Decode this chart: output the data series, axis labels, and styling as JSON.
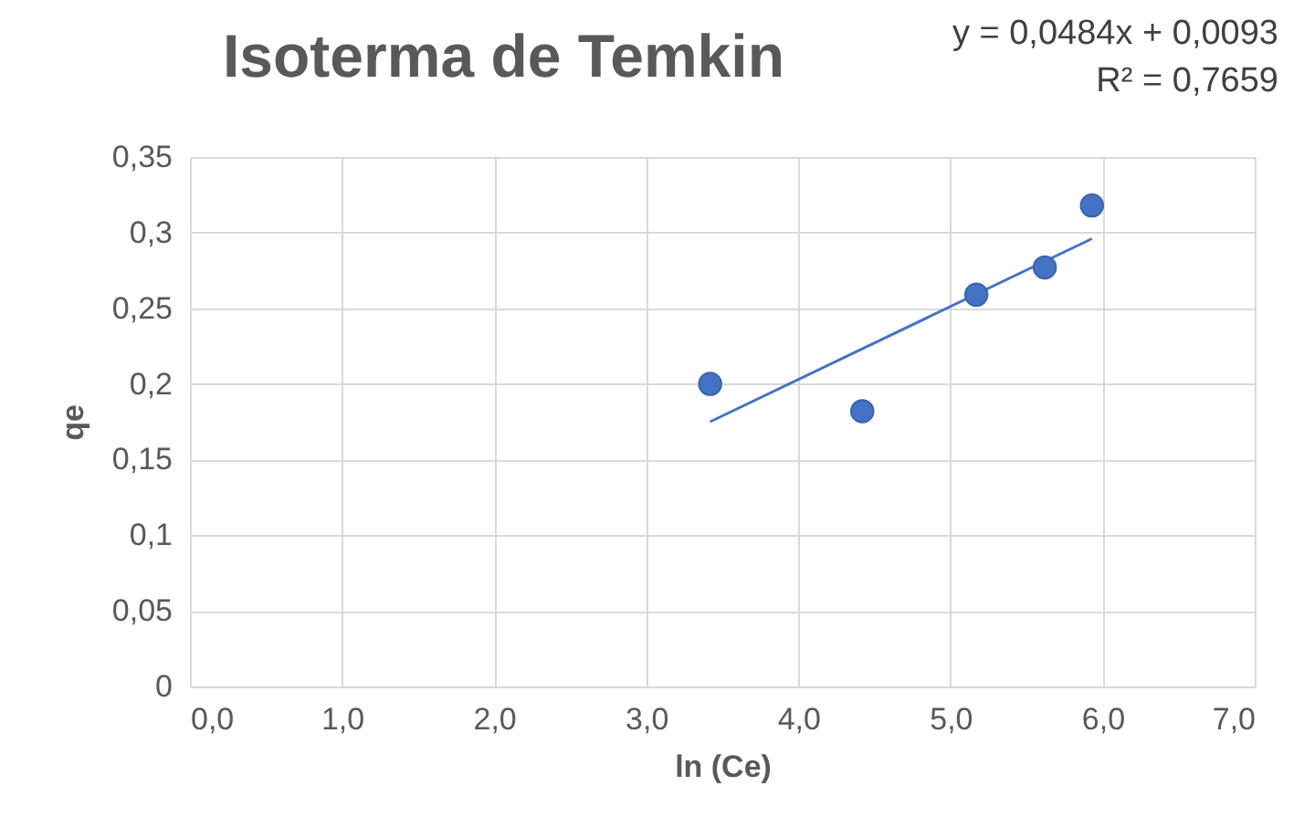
{
  "chart_data": {
    "type": "scatter",
    "title": "Isoterma de Temkin",
    "xlabel": "ln (Ce)",
    "ylabel": "qe",
    "annotations": [
      "y = 0,0484x + 0,0093",
      "R² = 0,7659"
    ],
    "series": [
      {
        "color": "#4472c4",
        "marker": "circle",
        "x": [
          3.42,
          4.42,
          5.17,
          5.62,
          5.93
        ],
        "values": [
          0.2,
          0.182,
          0.259,
          0.277,
          0.318
        ]
      },
      {
        "type": "line",
        "marker": "none",
        "color": "#4472c4",
        "x": [
          3.42,
          5.93
        ],
        "values": [
          0.175,
          0.296
        ]
      }
    ],
    "xlim": [
      0,
      7
    ],
    "xticks": [
      {
        "value": 0,
        "label": "0,0"
      },
      {
        "value": 1,
        "label": "1,0"
      },
      {
        "value": 2,
        "label": "2,0"
      },
      {
        "value": 3,
        "label": "3,0"
      },
      {
        "value": 4,
        "label": "4,0"
      },
      {
        "value": 5,
        "label": "5,0"
      },
      {
        "value": 6,
        "label": "6,0"
      },
      {
        "value": 7,
        "label": "7,0"
      }
    ],
    "ylim": [
      0,
      0.35
    ],
    "yticks": [
      0,
      {
        "value": 0.05,
        "label": "0,05"
      },
      {
        "value": 0.1,
        "label": "0,1"
      },
      {
        "value": 0.15,
        "label": "0,15"
      },
      {
        "value": 0.2,
        "label": "0,2"
      },
      {
        "value": 0.25,
        "label": "0,25"
      },
      {
        "value": 0.3,
        "label": "0,3"
      },
      {
        "value": 0.35,
        "label": "0,35"
      }
    ],
    "grid": true
  }
}
